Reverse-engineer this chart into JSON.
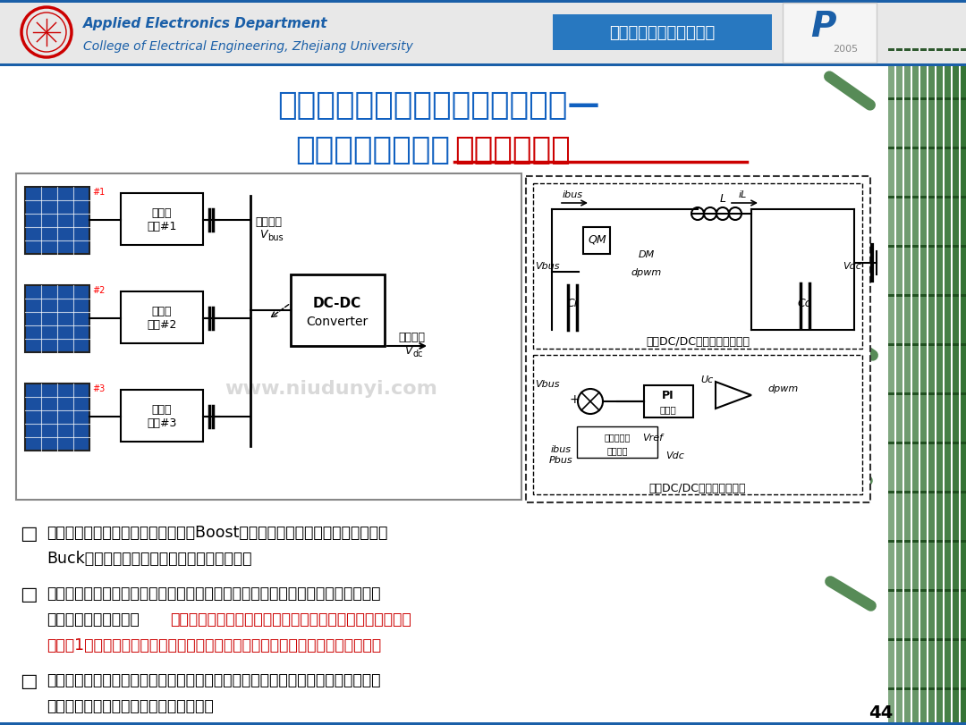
{
  "bg_color": "#ffffff",
  "header_bg": "#e8e8e8",
  "header_blue_box_color": "#2878c0",
  "header_text1": "Applied Electronics Department",
  "header_text2": "College of Electrical Engineering, Zhejiang University",
  "header_blue_label": "功率优化器研究（部分）",
  "title_line1": "两级式串联型光伏功率优化器系统—",
  "title_line2_black": "母线电压调制策略",
  "title_line2_red": "提高系统效率",
  "title_color": "#1060c0",
  "title_red_color": "#cc0000",
  "bullet_symbol": "□",
  "bullet_text1_black": "该系统前级由三个光伏板及三个基于Boost拓扑的功率优化器组成，后级由一个",
  "bullet_text1_black2": "Buck变换器来平衡光伏板与直流系统的功率。",
  "bullet_text2_black1": "两级式串联型光伏功率优化器系统的无通讯母线调制策略，主要通过无通讯的方式",
  "bullet_text2_black2": "进行前后两级的配合，",
  "bullet_text2_red1": "不断调整中间直流母线电压进而实现前级或者后级的电压变",
  "bullet_text2_red2": "比接近1，在不增加硬件成本的前提下减少开关损耗，进而提高系统的整体效率。",
  "bullet_text3_black1": "后级变换器（逆变器）作为主动控制单元控制中间母线电压；前级各个功率优化器",
  "bullet_text3_black2": "根据母线电压的变化调整自身工作状态。",
  "page_number": "44",
  "watermark_text": "www.niudunyi.com",
  "border_top_color": "#1a5fa8",
  "border_bottom_color": "#1a5fa8",
  "bamboo_green": "#2d6e2d",
  "bamboo_dark": "#1a4a1a",
  "solar_blue": "#1a4fa0",
  "circuit_line": "#000000"
}
